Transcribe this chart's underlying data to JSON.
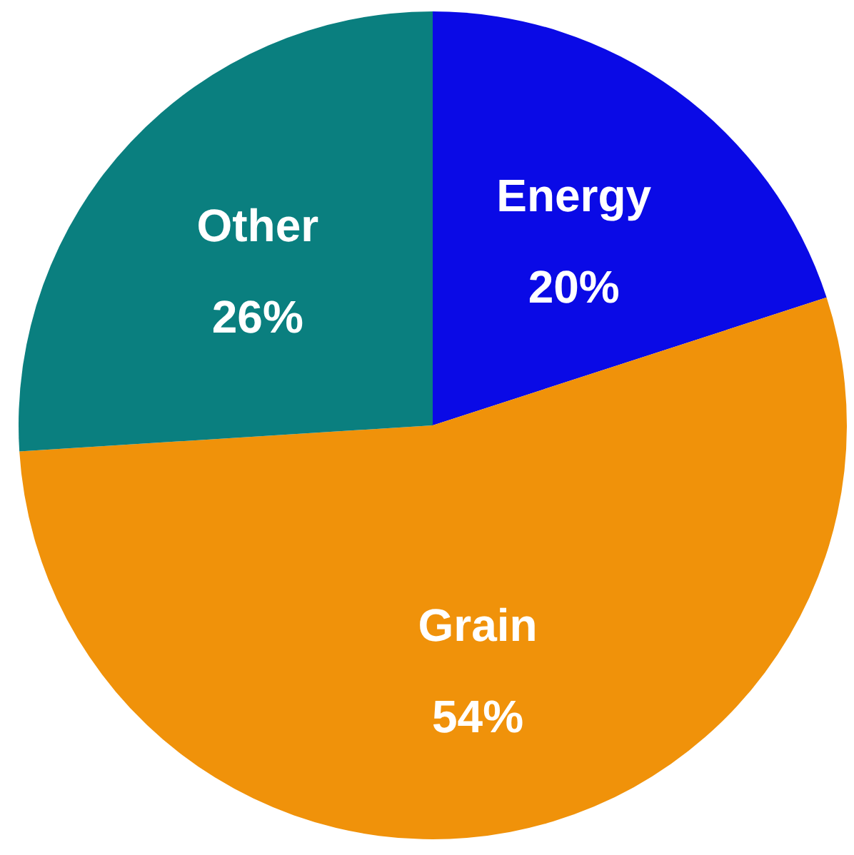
{
  "chart_data": {
    "type": "pie",
    "categories": [
      "Energy",
      "Grain",
      "Other"
    ],
    "values": [
      20,
      54,
      26
    ],
    "colors": [
      "#0a0ae6",
      "#f0920a",
      "#0a7f7f"
    ],
    "value_labels": [
      "20%",
      "54%",
      "26%"
    ]
  }
}
